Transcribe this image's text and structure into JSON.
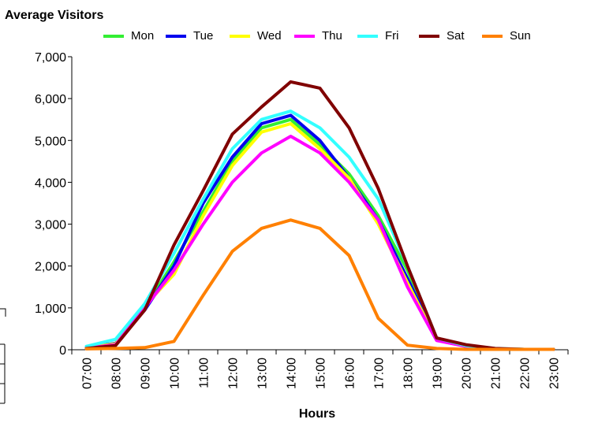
{
  "chart_data": {
    "type": "line",
    "title": "Average Visitors",
    "xlabel": "Hours",
    "ylabel": "",
    "ylim": [
      0,
      7000
    ],
    "yticks": [
      "0",
      "1,000",
      "2,000",
      "3,000",
      "4,000",
      "5,000",
      "6,000",
      "7,000"
    ],
    "categories": [
      "07:00",
      "08:00",
      "09:00",
      "10:00",
      "11:00",
      "12:00",
      "13:00",
      "14:00",
      "15:00",
      "16:00",
      "17:00",
      "18:00",
      "19:00",
      "20:00",
      "21:00",
      "22:00",
      "23:00"
    ],
    "legend_position": "top",
    "grid": false,
    "series": [
      {
        "name": "Mon",
        "color": "#33ee33",
        "values": [
          50,
          150,
          1000,
          2100,
          3300,
          4500,
          5300,
          5500,
          4900,
          4200,
          3200,
          1900,
          250,
          80,
          20,
          10,
          10
        ]
      },
      {
        "name": "Tue",
        "color": "#0000ee",
        "values": [
          50,
          150,
          950,
          2000,
          3500,
          4600,
          5400,
          5600,
          5000,
          4100,
          3100,
          1700,
          250,
          100,
          20,
          10,
          10
        ]
      },
      {
        "name": "Wed",
        "color": "#ffff00",
        "values": [
          50,
          140,
          1050,
          1800,
          3200,
          4400,
          5200,
          5400,
          4800,
          4100,
          3000,
          1600,
          230,
          80,
          20,
          10,
          10
        ]
      },
      {
        "name": "Thu",
        "color": "#ff00ff",
        "values": [
          40,
          120,
          1000,
          1900,
          3000,
          4000,
          4700,
          5100,
          4700,
          4000,
          3100,
          1500,
          220,
          80,
          20,
          10,
          10
        ]
      },
      {
        "name": "Fri",
        "color": "#33ffff",
        "values": [
          80,
          250,
          1100,
          2300,
          3600,
          4800,
          5500,
          5700,
          5300,
          4600,
          3600,
          2000,
          280,
          100,
          30,
          10,
          10
        ]
      },
      {
        "name": "Sat",
        "color": "#800000",
        "values": [
          30,
          100,
          950,
          2500,
          3800,
          5150,
          5800,
          6400,
          6250,
          5300,
          3850,
          2000,
          280,
          120,
          30,
          10,
          10
        ]
      },
      {
        "name": "Sun",
        "color": "#ff8000",
        "values": [
          20,
          30,
          50,
          200,
          1300,
          2350,
          2900,
          3100,
          2900,
          2250,
          750,
          110,
          30,
          10,
          10,
          10,
          10
        ]
      }
    ]
  }
}
